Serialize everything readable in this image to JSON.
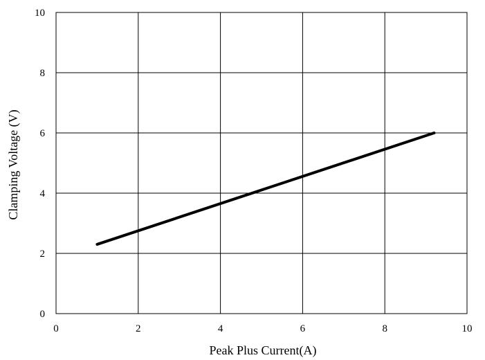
{
  "chart_data": {
    "type": "line",
    "title": "",
    "xlabel": "Peak Plus Current(A)",
    "ylabel": "Clamping Voltage (V)",
    "xlim": [
      0,
      10
    ],
    "ylim": [
      0,
      10
    ],
    "xticks": [
      "0",
      "2",
      "4",
      "6",
      "8",
      "10"
    ],
    "yticks": [
      "0",
      "2",
      "4",
      "6",
      "8",
      "10"
    ],
    "grid": true,
    "legend": "none",
    "series": [
      {
        "color": "#000000",
        "x": [
          1.0,
          9.2
        ],
        "y": [
          2.3,
          6.0
        ]
      }
    ]
  }
}
